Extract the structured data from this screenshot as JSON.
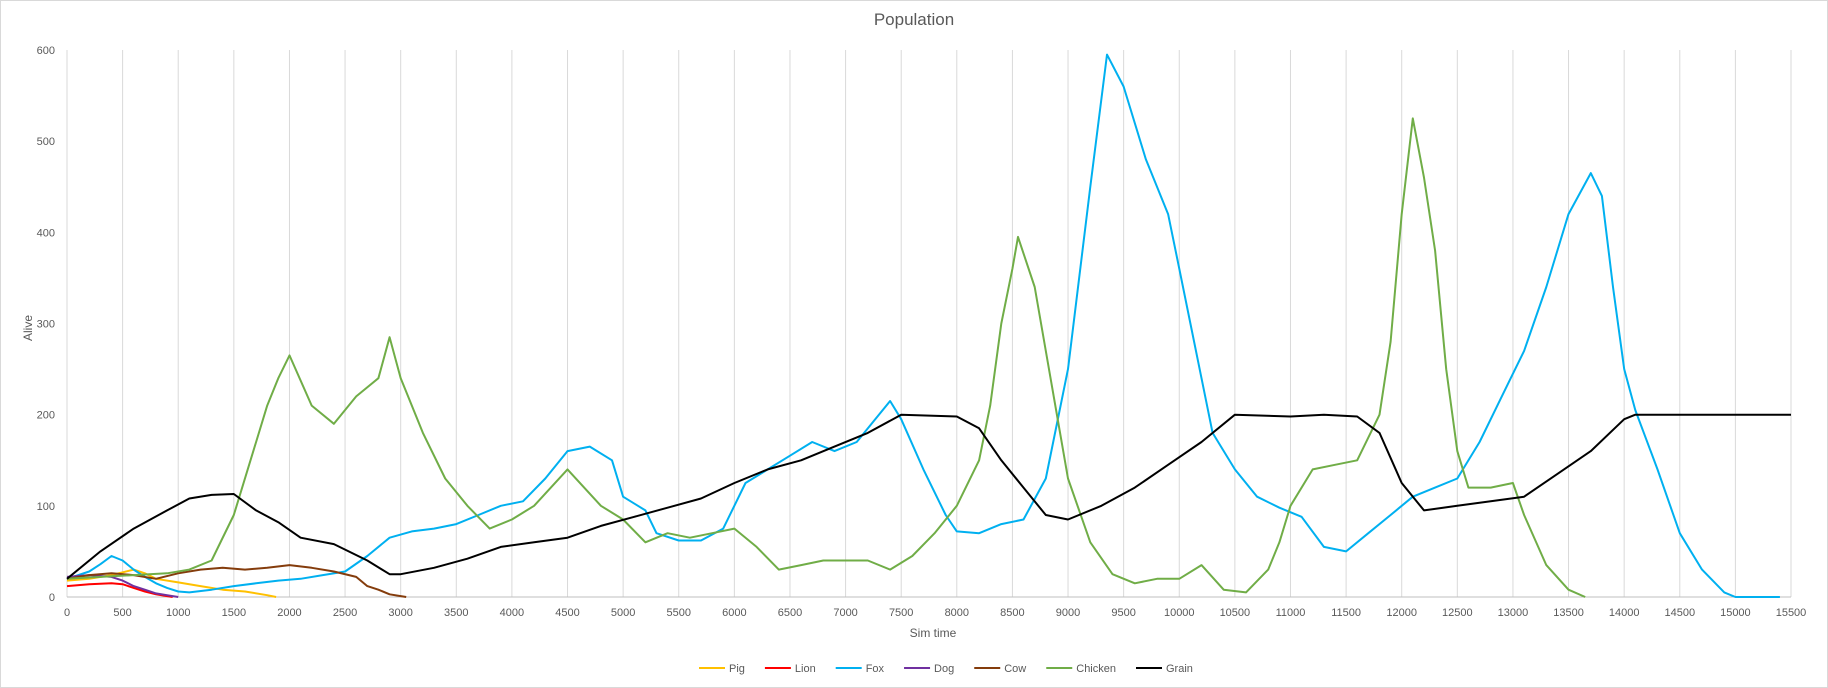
{
  "chart_data": {
    "type": "line",
    "title": "Population",
    "xlabel": "Sim time",
    "ylabel": "Alive",
    "xlim": [
      0,
      15500
    ],
    "ylim": [
      0,
      600
    ],
    "x_ticks": [
      0,
      500,
      1000,
      1500,
      2000,
      2500,
      3000,
      3500,
      4000,
      4500,
      5000,
      5500,
      6000,
      6500,
      7000,
      7500,
      8000,
      8500,
      9000,
      9500,
      10000,
      10500,
      11000,
      11500,
      12000,
      12500,
      13000,
      13500,
      14000,
      14500,
      15000,
      15500
    ],
    "y_ticks": [
      0,
      100,
      200,
      300,
      400,
      500,
      600
    ],
    "grid": "vertical",
    "legend_position": "bottom",
    "series": [
      {
        "name": "Pig",
        "color": "#ffc000",
        "points": [
          [
            0,
            18
          ],
          [
            200,
            20
          ],
          [
            400,
            24
          ],
          [
            600,
            30
          ],
          [
            700,
            26
          ],
          [
            800,
            20
          ],
          [
            1000,
            16
          ],
          [
            1200,
            12
          ],
          [
            1400,
            8
          ],
          [
            1600,
            6
          ],
          [
            1800,
            2
          ],
          [
            1880,
            0
          ]
        ]
      },
      {
        "name": "Lion",
        "color": "#ff0000",
        "points": [
          [
            0,
            12
          ],
          [
            200,
            14
          ],
          [
            400,
            15
          ],
          [
            500,
            14
          ],
          [
            600,
            10
          ],
          [
            700,
            6
          ],
          [
            800,
            3
          ],
          [
            900,
            1
          ],
          [
            950,
            0
          ]
        ]
      },
      {
        "name": "Fox",
        "color": "#00b0f0",
        "points": [
          [
            0,
            20
          ],
          [
            200,
            28
          ],
          [
            300,
            36
          ],
          [
            400,
            45
          ],
          [
            500,
            40
          ],
          [
            600,
            30
          ],
          [
            700,
            22
          ],
          [
            800,
            15
          ],
          [
            900,
            10
          ],
          [
            1000,
            6
          ],
          [
            1100,
            5
          ],
          [
            1300,
            8
          ],
          [
            1500,
            12
          ],
          [
            1700,
            15
          ],
          [
            1900,
            18
          ],
          [
            2100,
            20
          ],
          [
            2300,
            24
          ],
          [
            2500,
            28
          ],
          [
            2700,
            45
          ],
          [
            2900,
            65
          ],
          [
            3100,
            72
          ],
          [
            3300,
            75
          ],
          [
            3500,
            80
          ],
          [
            3700,
            90
          ],
          [
            3900,
            100
          ],
          [
            4100,
            105
          ],
          [
            4300,
            130
          ],
          [
            4500,
            160
          ],
          [
            4700,
            165
          ],
          [
            4900,
            150
          ],
          [
            5000,
            110
          ],
          [
            5200,
            95
          ],
          [
            5300,
            70
          ],
          [
            5500,
            62
          ],
          [
            5700,
            62
          ],
          [
            5900,
            75
          ],
          [
            6100,
            125
          ],
          [
            6300,
            140
          ],
          [
            6500,
            155
          ],
          [
            6700,
            170
          ],
          [
            6900,
            160
          ],
          [
            7100,
            170
          ],
          [
            7300,
            200
          ],
          [
            7400,
            215
          ],
          [
            7500,
            195
          ],
          [
            7700,
            140
          ],
          [
            7900,
            90
          ],
          [
            8000,
            72
          ],
          [
            8200,
            70
          ],
          [
            8400,
            80
          ],
          [
            8600,
            85
          ],
          [
            8800,
            130
          ],
          [
            9000,
            250
          ],
          [
            9200,
            450
          ],
          [
            9350,
            595
          ],
          [
            9500,
            560
          ],
          [
            9700,
            480
          ],
          [
            9900,
            420
          ],
          [
            10000,
            360
          ],
          [
            10100,
            300
          ],
          [
            10200,
            240
          ],
          [
            10300,
            180
          ],
          [
            10500,
            140
          ],
          [
            10700,
            110
          ],
          [
            10900,
            98
          ],
          [
            11100,
            88
          ],
          [
            11300,
            55
          ],
          [
            11500,
            50
          ],
          [
            11700,
            70
          ],
          [
            11900,
            90
          ],
          [
            12100,
            110
          ],
          [
            12300,
            120
          ],
          [
            12500,
            130
          ],
          [
            12700,
            170
          ],
          [
            12900,
            220
          ],
          [
            13100,
            270
          ],
          [
            13300,
            340
          ],
          [
            13500,
            420
          ],
          [
            13700,
            465
          ],
          [
            13800,
            440
          ],
          [
            13900,
            340
          ],
          [
            14000,
            250
          ],
          [
            14100,
            205
          ],
          [
            14300,
            140
          ],
          [
            14500,
            70
          ],
          [
            14700,
            30
          ],
          [
            14900,
            5
          ],
          [
            15000,
            0
          ],
          [
            15400,
            0
          ]
        ]
      },
      {
        "name": "Dog",
        "color": "#7030a0",
        "points": [
          [
            0,
            22
          ],
          [
            200,
            24
          ],
          [
            400,
            22
          ],
          [
            500,
            18
          ],
          [
            600,
            12
          ],
          [
            700,
            8
          ],
          [
            800,
            4
          ],
          [
            900,
            2
          ],
          [
            1000,
            0
          ]
        ]
      },
      {
        "name": "Cow",
        "color": "#843c0c",
        "points": [
          [
            0,
            20
          ],
          [
            200,
            24
          ],
          [
            400,
            26
          ],
          [
            600,
            24
          ],
          [
            800,
            20
          ],
          [
            1000,
            26
          ],
          [
            1200,
            30
          ],
          [
            1400,
            32
          ],
          [
            1600,
            30
          ],
          [
            1800,
            32
          ],
          [
            2000,
            35
          ],
          [
            2200,
            32
          ],
          [
            2400,
            28
          ],
          [
            2600,
            22
          ],
          [
            2700,
            12
          ],
          [
            2800,
            8
          ],
          [
            2900,
            3
          ],
          [
            3000,
            1
          ],
          [
            3050,
            0
          ]
        ]
      },
      {
        "name": "Chicken",
        "color": "#70ad47",
        "points": [
          [
            0,
            20
          ],
          [
            300,
            22
          ],
          [
            600,
            24
          ],
          [
            900,
            26
          ],
          [
            1100,
            30
          ],
          [
            1300,
            40
          ],
          [
            1500,
            90
          ],
          [
            1700,
            170
          ],
          [
            1800,
            210
          ],
          [
            1900,
            240
          ],
          [
            2000,
            265
          ],
          [
            2200,
            210
          ],
          [
            2400,
            190
          ],
          [
            2600,
            220
          ],
          [
            2800,
            240
          ],
          [
            2900,
            285
          ],
          [
            3000,
            240
          ],
          [
            3200,
            180
          ],
          [
            3400,
            130
          ],
          [
            3600,
            100
          ],
          [
            3800,
            75
          ],
          [
            4000,
            85
          ],
          [
            4200,
            100
          ],
          [
            4500,
            140
          ],
          [
            4800,
            100
          ],
          [
            5000,
            85
          ],
          [
            5200,
            60
          ],
          [
            5400,
            70
          ],
          [
            5600,
            65
          ],
          [
            5800,
            70
          ],
          [
            6000,
            75
          ],
          [
            6200,
            55
          ],
          [
            6400,
            30
          ],
          [
            6600,
            35
          ],
          [
            6800,
            40
          ],
          [
            7000,
            40
          ],
          [
            7200,
            40
          ],
          [
            7400,
            30
          ],
          [
            7600,
            45
          ],
          [
            7800,
            70
          ],
          [
            8000,
            100
          ],
          [
            8200,
            150
          ],
          [
            8300,
            210
          ],
          [
            8400,
            300
          ],
          [
            8500,
            360
          ],
          [
            8550,
            395
          ],
          [
            8700,
            340
          ],
          [
            8900,
            200
          ],
          [
            9000,
            130
          ],
          [
            9200,
            60
          ],
          [
            9400,
            25
          ],
          [
            9600,
            15
          ],
          [
            9800,
            20
          ],
          [
            10000,
            20
          ],
          [
            10200,
            35
          ],
          [
            10400,
            8
          ],
          [
            10600,
            5
          ],
          [
            10800,
            30
          ],
          [
            10900,
            60
          ],
          [
            11000,
            100
          ],
          [
            11200,
            140
          ],
          [
            11400,
            145
          ],
          [
            11600,
            150
          ],
          [
            11800,
            200
          ],
          [
            11900,
            280
          ],
          [
            12000,
            420
          ],
          [
            12100,
            525
          ],
          [
            12200,
            460
          ],
          [
            12300,
            380
          ],
          [
            12400,
            250
          ],
          [
            12500,
            160
          ],
          [
            12600,
            120
          ],
          [
            12800,
            120
          ],
          [
            13000,
            125
          ],
          [
            13100,
            90
          ],
          [
            13300,
            35
          ],
          [
            13500,
            8
          ],
          [
            13650,
            0
          ]
        ]
      },
      {
        "name": "Grain",
        "color": "#000000",
        "points": [
          [
            0,
            20
          ],
          [
            300,
            50
          ],
          [
            600,
            75
          ],
          [
            900,
            95
          ],
          [
            1100,
            108
          ],
          [
            1300,
            112
          ],
          [
            1500,
            113
          ],
          [
            1700,
            95
          ],
          [
            1900,
            82
          ],
          [
            2100,
            65
          ],
          [
            2400,
            58
          ],
          [
            2700,
            40
          ],
          [
            2900,
            25
          ],
          [
            3000,
            25
          ],
          [
            3300,
            32
          ],
          [
            3600,
            42
          ],
          [
            3900,
            55
          ],
          [
            4200,
            60
          ],
          [
            4500,
            65
          ],
          [
            4800,
            78
          ],
          [
            5100,
            88
          ],
          [
            5400,
            98
          ],
          [
            5700,
            108
          ],
          [
            6000,
            125
          ],
          [
            6300,
            140
          ],
          [
            6600,
            150
          ],
          [
            6900,
            165
          ],
          [
            7200,
            180
          ],
          [
            7500,
            200
          ],
          [
            8000,
            198
          ],
          [
            8200,
            185
          ],
          [
            8400,
            150
          ],
          [
            8600,
            120
          ],
          [
            8800,
            90
          ],
          [
            9000,
            85
          ],
          [
            9300,
            100
          ],
          [
            9600,
            120
          ],
          [
            9900,
            145
          ],
          [
            10200,
            170
          ],
          [
            10500,
            200
          ],
          [
            11000,
            198
          ],
          [
            11300,
            200
          ],
          [
            11600,
            198
          ],
          [
            11800,
            180
          ],
          [
            12000,
            125
          ],
          [
            12200,
            95
          ],
          [
            12500,
            100
          ],
          [
            12800,
            105
          ],
          [
            13100,
            110
          ],
          [
            13400,
            135
          ],
          [
            13700,
            160
          ],
          [
            14000,
            195
          ],
          [
            14100,
            200
          ],
          [
            15500,
            200
          ]
        ]
      }
    ]
  }
}
